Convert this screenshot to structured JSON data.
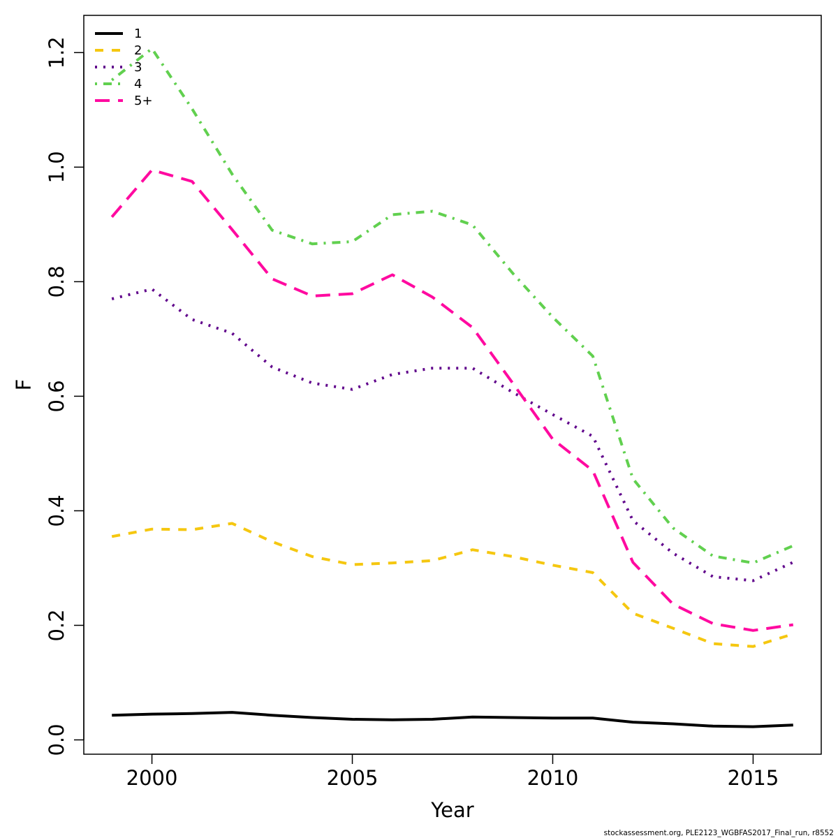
{
  "chart_data": {
    "type": "line",
    "title": "",
    "xlabel": "Year",
    "ylabel": "F",
    "xlim": [
      1998.3,
      2016.7
    ],
    "ylim": [
      -0.025,
      1.265
    ],
    "x_ticks": [
      2000,
      2005,
      2010,
      2015
    ],
    "x_tick_labels": [
      "2000",
      "2005",
      "2010",
      "2015"
    ],
    "y_ticks": [
      0.0,
      0.2,
      0.4,
      0.6,
      0.8,
      1.0,
      1.2
    ],
    "y_tick_labels": [
      "0.0",
      "0.2",
      "0.4",
      "0.6",
      "0.8",
      "1.0",
      "1.2"
    ],
    "grid": false,
    "legend_position": "top-left",
    "x": [
      1999,
      2000,
      2001,
      2002,
      2003,
      2004,
      2005,
      2006,
      2007,
      2008,
      2009,
      2010,
      2011,
      2012,
      2013,
      2014,
      2015,
      2016
    ],
    "series": [
      {
        "name": "1",
        "color": "#000000",
        "dash": "solid",
        "values": [
          0.043,
          0.045,
          0.046,
          0.048,
          0.043,
          0.039,
          0.036,
          0.035,
          0.036,
          0.04,
          0.039,
          0.038,
          0.038,
          0.031,
          0.028,
          0.024,
          0.023,
          0.026
        ]
      },
      {
        "name": "2",
        "color": "#F5C710",
        "dash": "dashed",
        "values": [
          0.355,
          0.368,
          0.367,
          0.378,
          0.346,
          0.32,
          0.306,
          0.309,
          0.313,
          0.332,
          0.32,
          0.305,
          0.292,
          0.221,
          0.195,
          0.168,
          0.163,
          0.185
        ]
      },
      {
        "name": "3",
        "color": "#61068C",
        "dash": "dotted",
        "values": [
          0.77,
          0.787,
          0.734,
          0.71,
          0.651,
          0.623,
          0.612,
          0.638,
          0.649,
          0.649,
          0.607,
          0.568,
          0.53,
          0.383,
          0.326,
          0.285,
          0.278,
          0.31
        ]
      },
      {
        "name": "4",
        "color": "#61D04F",
        "dash": "dotdash",
        "values": [
          1.152,
          1.207,
          1.102,
          0.988,
          0.89,
          0.866,
          0.87,
          0.917,
          0.923,
          0.899,
          0.815,
          0.738,
          0.67,
          0.456,
          0.37,
          0.321,
          0.309,
          0.339
        ]
      },
      {
        "name": "5+",
        "color": "#FF0AA0",
        "dash": "longdash",
        "values": [
          0.913,
          0.995,
          0.975,
          0.891,
          0.805,
          0.775,
          0.779,
          0.812,
          0.773,
          0.72,
          0.623,
          0.525,
          0.47,
          0.31,
          0.237,
          0.203,
          0.191,
          0.201
        ]
      }
    ]
  },
  "footer": {
    "credit": "stockassessment.org, PLE2123_WGBFAS2017_Final_run, r8552"
  }
}
